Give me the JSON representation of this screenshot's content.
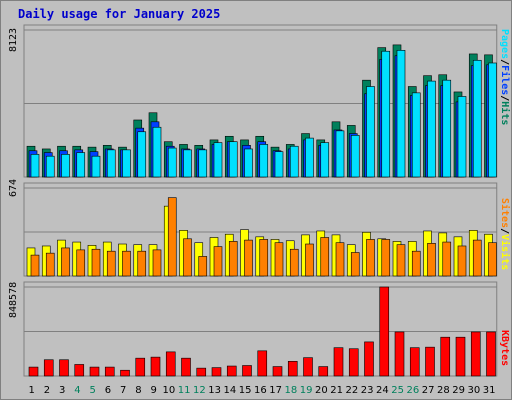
{
  "title": "Daily usage for January 2025",
  "colors": {
    "hits": "#00805c",
    "files": "#0040ff",
    "pages": "#00e0ff",
    "visits": "#ffff00",
    "sites": "#ff8000",
    "kbytes": "#ff0000",
    "weekend_label": "#00805c",
    "weekday_label": "#000000"
  },
  "legend_top": {
    "pages": "Pages",
    "sep1": "/",
    "files": "Files",
    "sep2": "/",
    "hits": "Hits"
  },
  "legend_mid": {
    "sites": "Sites",
    "sep": "/",
    "visits": "Visits"
  },
  "legend_bot": {
    "kbytes": "KBytes"
  },
  "chart_data": {
    "type": "bar",
    "categories": [
      "1",
      "2",
      "3",
      "4",
      "5",
      "6",
      "7",
      "8",
      "9",
      "10",
      "11",
      "12",
      "13",
      "14",
      "15",
      "16",
      "17",
      "18",
      "19",
      "20",
      "21",
      "22",
      "23",
      "24",
      "25",
      "26",
      "27",
      "28",
      "29",
      "30",
      "31"
    ],
    "weekend_days": [
      "4",
      "5",
      "11",
      "12",
      "18",
      "19",
      "25",
      "26"
    ],
    "panels": [
      {
        "name": "hits-files-pages",
        "ymax_label": "8123",
        "ymax": 8123,
        "series": [
          {
            "name": "Hits",
            "values": [
              1700,
              1550,
              1700,
              1700,
              1650,
              1750,
              1650,
              3150,
              3550,
              1950,
              1800,
              1750,
              2050,
              2250,
              2050,
              2250,
              1650,
              1800,
              2400,
              2050,
              3050,
              2850,
              5350,
              7150,
              7300,
              5000,
              5600,
              5650,
              4700,
              6800,
              6750
            ]
          },
          {
            "name": "Files",
            "values": [
              1450,
              1350,
              1450,
              1500,
              1400,
              1550,
              1500,
              2700,
              3050,
              1700,
              1550,
              1550,
              1800,
              1950,
              1750,
              1950,
              1450,
              1550,
              2050,
              1750,
              2600,
              2400,
              4600,
              6500,
              6700,
              4500,
              5050,
              5050,
              4150,
              6150,
              6200
            ]
          },
          {
            "name": "Pages",
            "values": [
              1250,
              1150,
              1250,
              1350,
              1150,
              1500,
              1500,
              2500,
              2750,
              1600,
              1500,
              1500,
              1900,
              1950,
              1550,
              1800,
              1400,
              1700,
              2150,
              1900,
              2550,
              2300,
              5000,
              6950,
              7000,
              4650,
              5300,
              5350,
              4450,
              6450,
              6300
            ]
          }
        ]
      },
      {
        "name": "visits-sites",
        "ymax_label": "674",
        "ymax": 674,
        "series": [
          {
            "name": "Visits",
            "values": [
              215,
              230,
              275,
              260,
              235,
              260,
              245,
              240,
              240,
              535,
              350,
              255,
              295,
              320,
              355,
              300,
              280,
              270,
              315,
              345,
              315,
              240,
              335,
              285,
              265,
              265,
              345,
              330,
              300,
              350,
              320
            ]
          },
          {
            "name": "Sites",
            "values": [
              160,
              175,
              215,
              200,
              205,
              190,
              190,
              190,
              200,
              600,
              285,
              150,
              225,
              265,
              275,
              280,
              255,
              205,
              245,
              295,
              255,
              180,
              280,
              280,
              240,
              190,
              250,
              260,
              230,
              275,
              255
            ]
          }
        ]
      },
      {
        "name": "kbytes",
        "ymax_label": "848578",
        "ymax": 848578,
        "series": [
          {
            "name": "KBytes",
            "values": [
              85000,
              155000,
              155000,
              110000,
              85000,
              85000,
              55000,
              170000,
              180000,
              230000,
              170000,
              75000,
              80000,
              95000,
              100000,
              240000,
              90000,
              140000,
              175000,
              90000,
              270000,
              260000,
              325000,
              848578,
              420000,
              270000,
              275000,
              370000,
              370000,
              420000,
              420000
            ]
          }
        ]
      }
    ]
  }
}
